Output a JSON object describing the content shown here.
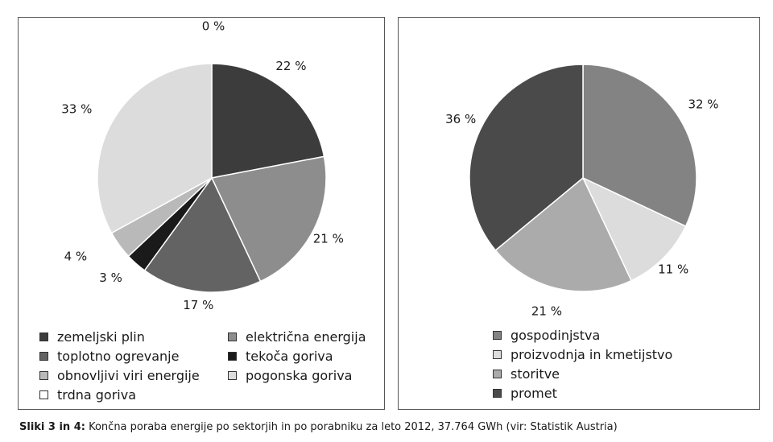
{
  "charts": {
    "left": {
      "type": "pie",
      "slices": [
        {
          "label": "zemeljski plin",
          "value": 22,
          "pct_label": "22 %",
          "color": "#3c3c3c"
        },
        {
          "label": "električna energija",
          "value": 21,
          "pct_label": "21 %",
          "color": "#8d8d8d"
        },
        {
          "label": "toplotno ogrevanje",
          "value": 17,
          "pct_label": "17 %",
          "color": "#636363"
        },
        {
          "label": "tekoča goriva",
          "value": 3,
          "pct_label": "3 %",
          "color": "#1a1a1a"
        },
        {
          "label": "obnovljivi viri energije",
          "value": 4,
          "pct_label": "4 %",
          "color": "#b9b9b9"
        },
        {
          "label": "pogonska goriva",
          "value": 33,
          "pct_label": "33 %",
          "color": "#dcdcdc"
        },
        {
          "label": "trdna goriva",
          "value": 0,
          "pct_label": "0 %",
          "color": "#ffffff"
        }
      ]
    },
    "right": {
      "type": "pie",
      "slices": [
        {
          "label": "gospodinjstva",
          "value": 32,
          "pct_label": "32 %",
          "color": "#838383"
        },
        {
          "label": "proizvodnja in kmetijstvo",
          "value": 11,
          "pct_label": "11 %",
          "color": "#dcdcdc"
        },
        {
          "label": "storitve",
          "value": 21,
          "pct_label": "21 %",
          "color": "#ababab"
        },
        {
          "label": "promet",
          "value": 36,
          "pct_label": "36 %",
          "color": "#4a4a4a"
        }
      ]
    }
  },
  "chart_data": [
    {
      "type": "pie",
      "categories": [
        "zemeljski plin",
        "električna energija",
        "toplotno ogrevanje",
        "tekoča goriva",
        "obnovljivi viri energije",
        "pogonska goriva",
        "trdna goriva"
      ],
      "values": [
        22,
        21,
        17,
        3,
        4,
        33,
        0
      ],
      "legend": [
        "zemeljski plin",
        "električna energija",
        "toplotno ogrevanje",
        "tekoča goriva",
        "obnovljivi viri energije",
        "pogonska goriva",
        "trdna goriva"
      ],
      "legend_position": "bottom"
    },
    {
      "type": "pie",
      "categories": [
        "gospodinjstva",
        "proizvodnja in kmetijstvo",
        "storitve",
        "promet"
      ],
      "values": [
        32,
        11,
        21,
        36
      ],
      "legend": [
        "gospodinjstva",
        "proizvodnja in kmetijstvo",
        "storitve",
        "promet"
      ],
      "legend_position": "bottom"
    }
  ],
  "caption": {
    "bold": "Sliki 3 in 4:",
    "text": " Končna poraba energije po sektorjih in po porabniku za leto 2012, 37.764 GWh (vir: Statistik Austria)"
  }
}
